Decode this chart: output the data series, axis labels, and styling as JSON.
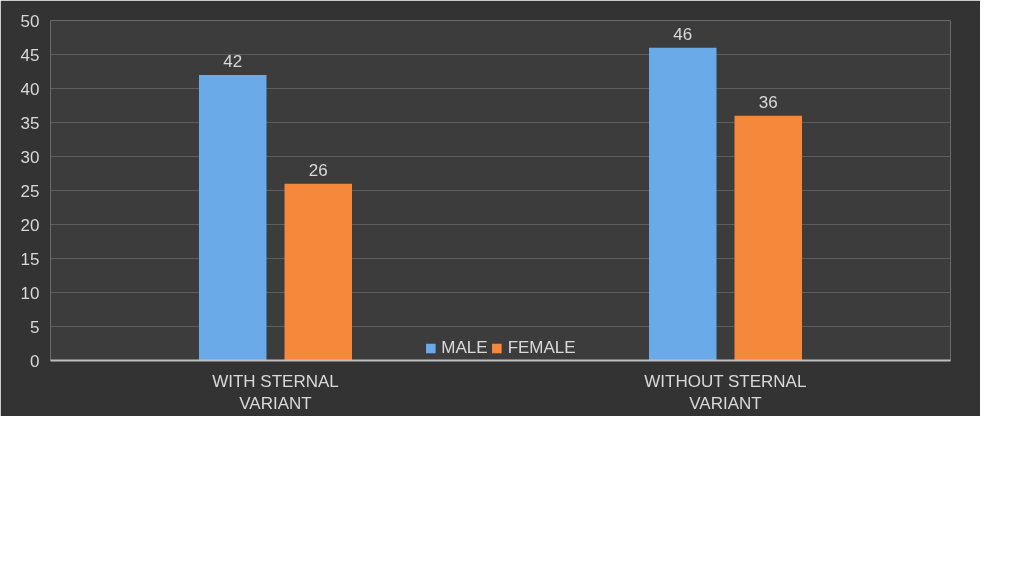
{
  "chart_data": {
    "type": "bar",
    "categories": [
      "WITH STERNAL VARIANT",
      "WITHOUT STERNAL VARIANT"
    ],
    "series": [
      {
        "name": "MALE",
        "color": "#6aaae8",
        "values": [
          42,
          46
        ]
      },
      {
        "name": "FEMALE",
        "color": "#f5883a",
        "values": [
          26,
          36
        ]
      }
    ],
    "ylim": [
      0,
      50
    ],
    "yticks": [
      0,
      5,
      10,
      15,
      20,
      25,
      30,
      35,
      40,
      45,
      50
    ],
    "grid": "y",
    "legend": "bottom",
    "data_labels": true
  }
}
